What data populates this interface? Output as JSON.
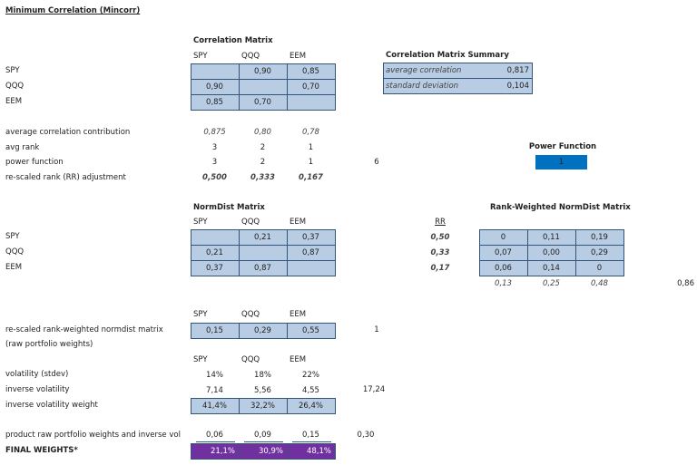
{
  "title": "Minimum Correlation (Mincorr)",
  "correlation_matrix": {
    "title": "Correlation Matrix",
    "columns": [
      "SPY",
      "QQQ",
      "EEM"
    ],
    "rows": [
      {
        "label": "SPY",
        "cells": [
          null,
          "0,90",
          "0,85"
        ]
      },
      {
        "label": "QQQ",
        "cells": [
          "0,90",
          null,
          "0,70"
        ]
      },
      {
        "label": "EEM",
        "cells": [
          "0,85",
          "0,70",
          null
        ]
      }
    ]
  },
  "summary": {
    "title": "Correlation Matrix Summary",
    "rows": [
      [
        "average correlation",
        "0,817"
      ],
      [
        "standard deviation",
        "0,104"
      ]
    ]
  },
  "stats": [
    {
      "label": "average correlation contribution",
      "cells": [
        "0,875",
        "0,80",
        "0,78"
      ]
    },
    {
      "label": "avg rank",
      "cells": [
        "3",
        "2",
        "1"
      ]
    },
    {
      "label": "power function",
      "cells": [
        "3",
        "2",
        "1"
      ],
      "total": "6"
    },
    {
      "label": "re-scaled rank (RR) adjustment",
      "cells": [
        "0,500",
        "0,333",
        "0,167"
      ]
    }
  ],
  "power_function": {
    "title": "Power Function",
    "value": "1"
  },
  "normdist_matrix": {
    "title": "NormDist Matrix",
    "columns": [
      "SPY",
      "QQQ",
      "EEM"
    ],
    "rows": [
      {
        "label": "SPY",
        "cells": [
          null,
          "0,21",
          "0,37"
        ]
      },
      {
        "label": "QQQ",
        "cells": [
          "0,21",
          null,
          "0,87"
        ]
      },
      {
        "label": "EEM",
        "cells": [
          "0,37",
          "0,87",
          null
        ]
      }
    ]
  },
  "rr": {
    "header": "RR",
    "values": [
      "0,50",
      "0,33",
      "0,17"
    ]
  },
  "rank_weighted": {
    "title": "Rank-Weighted NormDist Matrix",
    "rows": [
      [
        "0",
        "0,11",
        "0,19"
      ],
      [
        "0,07",
        "0,00",
        "0,29"
      ],
      [
        "0,06",
        "0,14",
        "0"
      ]
    ],
    "totals": [
      "0,13",
      "0,25",
      "0,48"
    ],
    "grand_total": "0,86"
  },
  "raw_weights": {
    "columns": [
      "SPY",
      "QQQ",
      "EEM"
    ],
    "label": "re-scaled rank-weighted normdist matrix",
    "cells": [
      "0,15",
      "0,29",
      "0,55"
    ],
    "total": "1",
    "note": "(raw portfolio weights)"
  },
  "volatility": {
    "columns": [
      "SPY",
      "QQQ",
      "EEM"
    ],
    "rows": [
      {
        "label": "volatility (stdev)",
        "cells": [
          "14%",
          "18%",
          "22%"
        ]
      },
      {
        "label": "inverse volatility",
        "cells": [
          "7,14",
          "5,56",
          "4,55"
        ],
        "total": "17,24"
      },
      {
        "label": "inverse volatility weight",
        "cells": [
          "41,4%",
          "32,2%",
          "26,4%"
        ]
      }
    ]
  },
  "product": {
    "label": "product raw portfolio weights and inverse vol",
    "cells": [
      "0,06",
      "0,09",
      "0,15"
    ],
    "total": "0,30"
  },
  "final": {
    "label": "FINAL WEIGHTS*",
    "cells": [
      "21,1%",
      "30,9%",
      "48,1%"
    ]
  }
}
